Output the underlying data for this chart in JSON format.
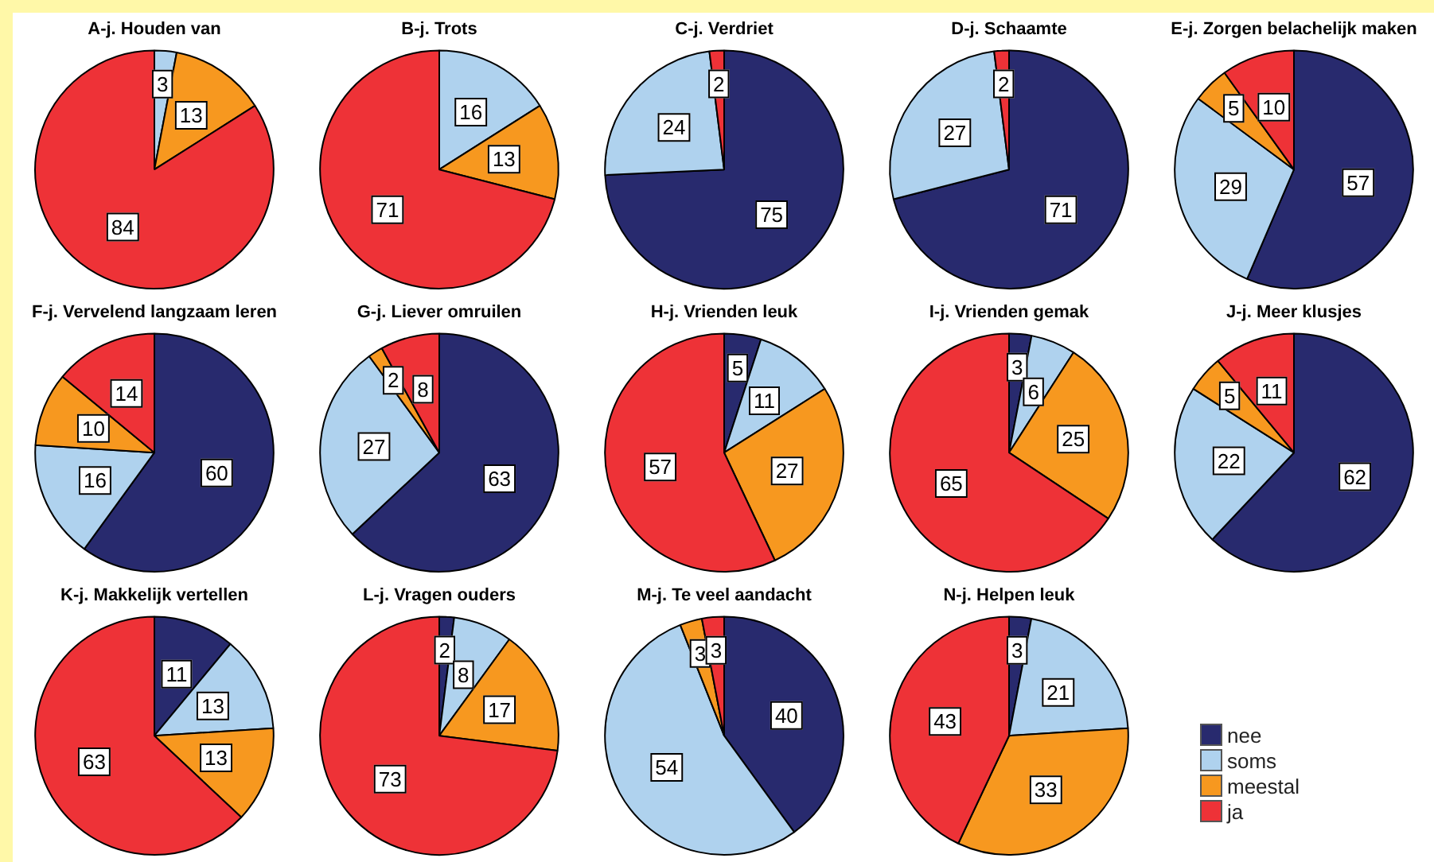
{
  "chart_data": [
    {
      "type": "pie",
      "title": "A-j. Houden van",
      "categories": [
        "nee",
        "soms",
        "meestal",
        "ja"
      ],
      "values": [
        0,
        3,
        13,
        84
      ],
      "value_labels": [
        null,
        "3",
        "13",
        "84"
      ],
      "colors": [
        "#282a6e",
        "#afd2ee",
        "#f7981f",
        "#ee3237"
      ],
      "legend": "bottom right"
    },
    {
      "type": "pie",
      "title": "B-j. Trots",
      "categories": [
        null,
        null,
        null,
        null
      ],
      "values": [
        0,
        16,
        13,
        71
      ],
      "value_labels": [
        null,
        "16",
        "13",
        "71"
      ],
      "colors": [
        "#282a6e",
        "#afd2ee",
        "#f7981f",
        "#ee3237"
      ]
    },
    {
      "type": "pie",
      "title": "C-j. Verdriet",
      "categories": [
        null,
        null,
        null,
        null
      ],
      "values": [
        75,
        24,
        0,
        2
      ],
      "value_labels": [
        "75",
        "24",
        null,
        "2"
      ],
      "colors": [
        "#282a6e",
        "#afd2ee",
        "#f7981f",
        "#ee3237"
      ]
    },
    {
      "type": "pie",
      "title": "D-j. Schaamte",
      "categories": [
        null,
        null,
        null,
        null
      ],
      "values": [
        71,
        27,
        0,
        2
      ],
      "value_labels": [
        "71",
        "27",
        null,
        "2"
      ],
      "colors": [
        "#282a6e",
        "#afd2ee",
        "#f7981f",
        "#ee3237"
      ]
    },
    {
      "type": "pie",
      "title": "E-j. Zorgen belachelijk maken",
      "categories": [
        null,
        null,
        null,
        null
      ],
      "values": [
        57,
        29,
        5,
        10
      ],
      "value_labels": [
        "57",
        "29",
        "5",
        "10"
      ],
      "colors": [
        "#282a6e",
        "#afd2ee",
        "#f7981f",
        "#ee3237"
      ]
    },
    {
      "type": "pie",
      "title": "F-j. Vervelend langzaam leren",
      "categories": [
        null,
        null,
        null,
        null
      ],
      "values": [
        60,
        16,
        10,
        14
      ],
      "value_labels": [
        "60",
        "16",
        "10",
        "14"
      ],
      "colors": [
        "#282a6e",
        "#afd2ee",
        "#f7981f",
        "#ee3237"
      ]
    },
    {
      "type": "pie",
      "title": "G-j. Liever omruilen",
      "categories": [
        null,
        null,
        null,
        null
      ],
      "values": [
        63,
        27,
        2,
        8
      ],
      "value_labels": [
        "63",
        "27",
        "2",
        "8"
      ],
      "colors": [
        "#282a6e",
        "#afd2ee",
        "#f7981f",
        "#ee3237"
      ]
    },
    {
      "type": "pie",
      "title": "H-j. Vrienden leuk",
      "categories": [
        null,
        null,
        null,
        null
      ],
      "values": [
        5,
        11,
        27,
        57
      ],
      "value_labels": [
        "5",
        "11",
        "27",
        "57"
      ],
      "colors": [
        "#282a6e",
        "#afd2ee",
        "#f7981f",
        "#ee3237"
      ]
    },
    {
      "type": "pie",
      "title": "I-j. Vrienden gemak",
      "categories": [
        null,
        null,
        null,
        null
      ],
      "values": [
        3,
        6,
        25,
        65
      ],
      "value_labels": [
        "3",
        "6",
        "25",
        "65"
      ],
      "colors": [
        "#282a6e",
        "#afd2ee",
        "#f7981f",
        "#ee3237"
      ]
    },
    {
      "type": "pie",
      "title": "J-j. Meer klusjes",
      "categories": [
        null,
        null,
        null,
        null
      ],
      "values": [
        62,
        22,
        5,
        11
      ],
      "value_labels": [
        "62",
        "22",
        "5",
        "11"
      ],
      "colors": [
        "#282a6e",
        "#afd2ee",
        "#f7981f",
        "#ee3237"
      ]
    },
    {
      "type": "pie",
      "title": "K-j. Makkelijk vertellen",
      "categories": [
        null,
        null,
        null,
        null
      ],
      "values": [
        11,
        13,
        13,
        63
      ],
      "value_labels": [
        "11",
        "13",
        "13",
        "63"
      ],
      "colors": [
        "#282a6e",
        "#afd2ee",
        "#f7981f",
        "#ee3237"
      ]
    },
    {
      "type": "pie",
      "title": "L-j. Vragen ouders",
      "categories": [
        null,
        null,
        null,
        null
      ],
      "values": [
        2,
        8,
        17,
        73
      ],
      "value_labels": [
        "2",
        "8",
        "17",
        "73"
      ],
      "colors": [
        "#282a6e",
        "#afd2ee",
        "#f7981f",
        "#ee3237"
      ]
    },
    {
      "type": "pie",
      "title": "M-j. Te veel aandacht",
      "categories": [
        null,
        null,
        null,
        null
      ],
      "values": [
        40,
        54,
        3,
        3
      ],
      "value_labels": [
        "40",
        "54",
        "3",
        "3"
      ],
      "colors": [
        "#282a6e",
        "#afd2ee",
        "#f7981f",
        "#ee3237"
      ]
    },
    {
      "type": "pie",
      "title": "N-j. Helpen leuk",
      "categories": [
        null,
        null,
        null,
        null
      ],
      "values": [
        3,
        21,
        33,
        43
      ],
      "value_labels": [
        "3",
        "21",
        "33",
        "43"
      ],
      "colors": [
        "#282a6e",
        "#afd2ee",
        "#f7981f",
        "#ee3237"
      ]
    }
  ]
}
